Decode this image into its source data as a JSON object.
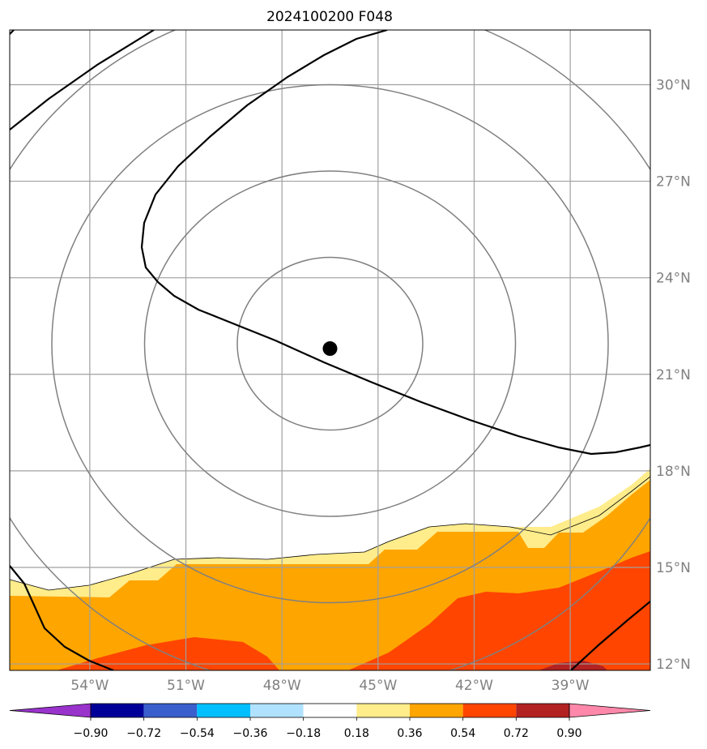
{
  "title": "2024100200 F048",
  "map": {
    "lon_range": [
      -56.5,
      -36.5
    ],
    "lat_range": [
      11.8,
      31.7
    ],
    "grid_color": "#a0a0a0",
    "label_color": "#808080",
    "lat_ticks": [
      {
        "value": 30,
        "label": "30°N"
      },
      {
        "value": 27,
        "label": "27°N"
      },
      {
        "value": 24,
        "label": "24°N"
      },
      {
        "value": 21,
        "label": "21°N"
      },
      {
        "value": 18,
        "label": "18°N"
      },
      {
        "value": 15,
        "label": "15°N"
      },
      {
        "value": 12,
        "label": "12°N"
      }
    ],
    "lon_ticks": [
      {
        "value": -54,
        "label": "54°W"
      },
      {
        "value": -51,
        "label": "51°W"
      },
      {
        "value": -48,
        "label": "48°W"
      },
      {
        "value": -45,
        "label": "45°W"
      },
      {
        "value": -42,
        "label": "42°W"
      },
      {
        "value": -39,
        "label": "39°W"
      }
    ],
    "storm_center": {
      "lon": -46.5,
      "lat": 21.8
    },
    "range_ring_color": "#808080"
  },
  "colorbar": {
    "levels": [
      "−0.90",
      "−0.72",
      "−0.54",
      "−0.36",
      "−0.18",
      "0.18",
      "0.36",
      "0.54",
      "0.72",
      "0.90"
    ],
    "colors": [
      "#9933cc",
      "#000099",
      "#3a5fcd",
      "#00bfff",
      "#b0e2ff",
      "#ffffff",
      "#ffec8b",
      "#ffa500",
      "#ff4500",
      "#b22222",
      "#ff88aa"
    ]
  },
  "chart_data": {
    "type": "filled-contour-map",
    "title": "2024100200 F048",
    "xlabel": "",
    "ylabel": "",
    "xlim": [
      -56.5,
      -36.5
    ],
    "ylim": [
      11.8,
      31.7
    ],
    "contour_levels": [
      -0.9,
      -0.72,
      -0.54,
      -0.36,
      -0.18,
      0.18,
      0.36,
      0.54,
      0.72,
      0.9
    ],
    "fill_colors": [
      "#9933cc",
      "#000099",
      "#3a5fcd",
      "#00bfff",
      "#b0e2ff",
      "#ffffff",
      "#ffec8b",
      "#ffa500",
      "#ff4500",
      "#b22222",
      "#ff88aa"
    ],
    "storm_center": {
      "lon": -46.5,
      "lat": 21.8
    }
  }
}
